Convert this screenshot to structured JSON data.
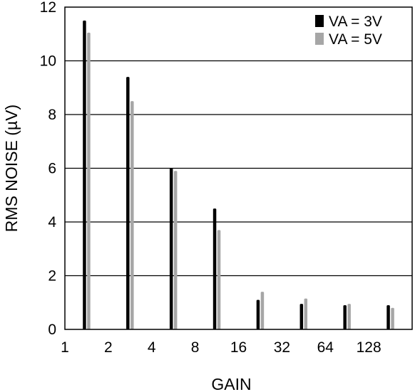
{
  "chart_data": {
    "type": "bar",
    "categories": [
      "1",
      "2",
      "4",
      "8",
      "16",
      "32",
      "64",
      "128"
    ],
    "series": [
      {
        "name": "VA = 3V",
        "color": "#000000",
        "values": [
          11.5,
          9.4,
          6.0,
          4.5,
          1.1,
          0.95,
          0.9,
          0.9
        ]
      },
      {
        "name": "VA = 5V",
        "color": "#a6a6a6",
        "values": [
          11.05,
          8.5,
          5.9,
          3.7,
          1.4,
          1.15,
          0.95,
          0.8
        ]
      }
    ],
    "xlabel": "GAIN",
    "ylabel": "RMS NOISE (µV)",
    "ylim": [
      0,
      12
    ],
    "yticks": [
      "0",
      "2",
      "4",
      "6",
      "8",
      "10",
      "12"
    ],
    "grid": true,
    "legend_position": "top-right"
  }
}
